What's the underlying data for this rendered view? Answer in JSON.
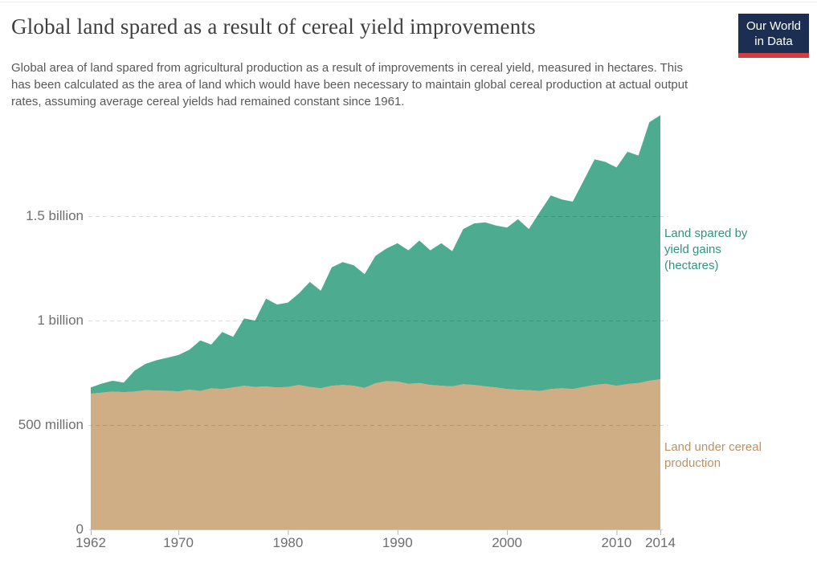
{
  "header": {
    "logo": {
      "line1": "Our World",
      "line2": "in Data",
      "bg_color": "#1c2f52",
      "bar_color": "#d23d43"
    }
  },
  "annotations": {
    "spared_label": "Land spared by yield gains (hectares)",
    "production_label": "Land under cereal production"
  },
  "chart_data": {
    "type": "area",
    "stacked": true,
    "title": "Global land spared as a result of cereal yield improvements",
    "subtitle": "Global area of land spared from agricultural production as a result of improvements in cereal yield, measured in hectares. This has been calculated as the area of land which would have been necessary to maintain global cereal production at actual output rates, assuming average cereal yields had remained constant since 1961.",
    "xlabel": "",
    "ylabel": "",
    "unit": "million hectares",
    "grid": "dashed-horizontal",
    "legend_position": "right-direct-labels",
    "xlim": [
      1962,
      2014
    ],
    "ylim": [
      0,
      2000
    ],
    "xticks": [
      1962,
      1970,
      1980,
      1990,
      2000,
      2010,
      2014
    ],
    "yticks": [
      {
        "value": 0,
        "label": "0"
      },
      {
        "value": 500,
        "label": "500 million"
      },
      {
        "value": 1000,
        "label": "1 billion"
      },
      {
        "value": 1500,
        "label": "1.5 billion"
      }
    ],
    "x": [
      1962,
      1963,
      1964,
      1965,
      1966,
      1967,
      1968,
      1969,
      1970,
      1971,
      1972,
      1973,
      1974,
      1975,
      1976,
      1977,
      1978,
      1979,
      1980,
      1981,
      1982,
      1983,
      1984,
      1985,
      1986,
      1987,
      1988,
      1989,
      1990,
      1991,
      1992,
      1993,
      1994,
      1995,
      1996,
      1997,
      1998,
      1999,
      2000,
      2001,
      2002,
      2003,
      2004,
      2005,
      2006,
      2007,
      2008,
      2009,
      2010,
      2011,
      2012,
      2013,
      2014
    ],
    "series": [
      {
        "name": "Land under cereal production",
        "fill_color": "#cfad85",
        "label_color": "#bb9266",
        "values": [
          650,
          655,
          660,
          657,
          660,
          667,
          665,
          664,
          661,
          669,
          663,
          676,
          672,
          680,
          688,
          682,
          685,
          680,
          682,
          692,
          682,
          676,
          688,
          692,
          688,
          678,
          700,
          710,
          708,
          697,
          701,
          692,
          688,
          685,
          695,
          692,
          685,
          680,
          672,
          669,
          667,
          663,
          672,
          676,
          672,
          682,
          692,
          697,
          688,
          696,
          701,
          712,
          719
        ]
      },
      {
        "name": "Land spared by yield gains (hectares)",
        "fill_color": "#4dab8f",
        "label_color": "#359180",
        "values": [
          30,
          43,
          52,
          46,
          100,
          126,
          145,
          158,
          174,
          191,
          242,
          209,
          273,
          242,
          322,
          318,
          420,
          397,
          404,
          438,
          503,
          467,
          567,
          588,
          577,
          544,
          610,
          635,
          662,
          639,
          682,
          644,
          682,
          647,
          743,
          773,
          785,
          775,
          773,
          816,
          771,
          857,
          927,
          904,
          897,
          988,
          1080,
          1062,
          1045,
          1112,
          1089,
          1238,
          1264
        ]
      }
    ]
  }
}
